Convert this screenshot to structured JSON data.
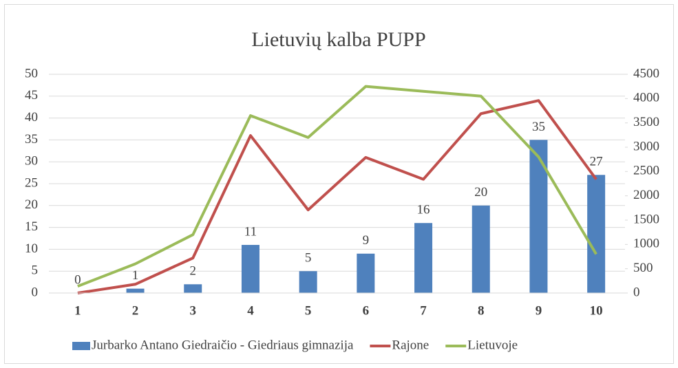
{
  "chart_data": {
    "type": "bar-line",
    "title": "Lietuvių kalba PUPP",
    "categories": [
      "1",
      "2",
      "3",
      "4",
      "5",
      "6",
      "7",
      "8",
      "9",
      "10"
    ],
    "series": [
      {
        "name": "Jurbarko Antano Giedraičio - Giedriaus gimnazija",
        "type": "bar",
        "color": "#4f81bd",
        "axis": "y",
        "values": [
          0,
          1,
          2,
          11,
          5,
          9,
          16,
          20,
          35,
          27
        ]
      },
      {
        "name": "Rajone",
        "type": "line",
        "color": "#c0504d",
        "axis": "y",
        "values": [
          0,
          2,
          8,
          36,
          19,
          31,
          26,
          41,
          44,
          26
        ]
      },
      {
        "name": "Lietuvoje",
        "type": "line",
        "color": "#9bbb59",
        "axis": "y2",
        "values": [
          140,
          600,
          1200,
          3650,
          3200,
          4250,
          4150,
          4050,
          2800,
          800
        ]
      }
    ],
    "ylim": [
      0,
      50
    ],
    "yticks": [
      0,
      5,
      10,
      15,
      20,
      25,
      30,
      35,
      40,
      45,
      50
    ],
    "y2lim": [
      0,
      4500
    ],
    "y2ticks": [
      0,
      500,
      1000,
      1500,
      2000,
      2500,
      3000,
      3500,
      4000,
      4500
    ],
    "grid": true,
    "legend": "bottom",
    "data_labels": true
  }
}
